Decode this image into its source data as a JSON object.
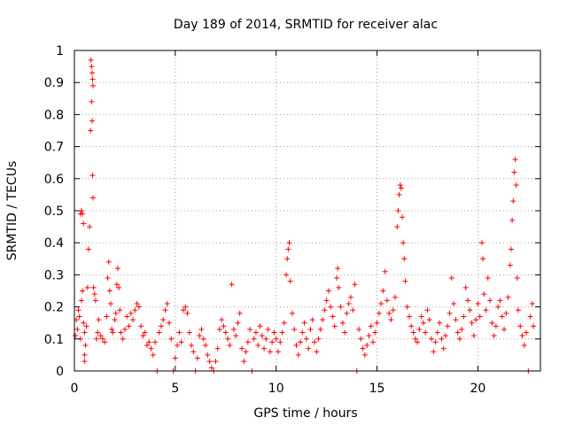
{
  "chart_data": {
    "type": "scatter",
    "title": "Day 189 of 2014, SRMTID for receiver alac",
    "xlabel": "GPS time / hours",
    "ylabel": "SRMTID / TECUs",
    "xlim": [
      0,
      23.1
    ],
    "ylim": [
      0,
      1
    ],
    "xticks": [
      0,
      5,
      10,
      15,
      20
    ],
    "xtick_labels": [
      "0",
      "5",
      "10",
      "15",
      "20"
    ],
    "yticks": [
      0,
      0.1,
      0.2,
      0.3,
      0.4,
      0.5,
      0.6,
      0.7,
      0.8,
      0.9,
      1
    ],
    "ytick_labels": [
      "0",
      "0.1",
      "0.2",
      "0.3",
      "0.4",
      "0.5",
      "0.6",
      "0.7",
      "0.8",
      "0.9",
      "1"
    ],
    "grid": true,
    "marker": "+",
    "color": "#ff0000",
    "series": [
      {
        "name": "SRMTID",
        "points": [
          [
            0.05,
            0.11
          ],
          [
            0.1,
            0.16
          ],
          [
            0.15,
            0.13
          ],
          [
            0.2,
            0.19
          ],
          [
            0.25,
            0.17
          ],
          [
            0.3,
            0.49
          ],
          [
            0.35,
            0.5
          ],
          [
            0.4,
            0.49
          ],
          [
            0.45,
            0.46
          ],
          [
            0.3,
            0.1
          ],
          [
            0.35,
            0.22
          ],
          [
            0.4,
            0.25
          ],
          [
            0.45,
            0.15
          ],
          [
            0.5,
            0.12
          ],
          [
            0.5,
            0.05
          ],
          [
            0.5,
            0.03
          ],
          [
            0.55,
            0.08
          ],
          [
            0.6,
            0.14
          ],
          [
            0.65,
            0.26
          ],
          [
            0.7,
            0.38
          ],
          [
            0.75,
            0.45
          ],
          [
            0.8,
            0.75
          ],
          [
            0.82,
            0.97
          ],
          [
            0.85,
            0.95
          ],
          [
            0.88,
            0.93
          ],
          [
            0.9,
            0.91
          ],
          [
            0.92,
            0.89
          ],
          [
            0.85,
            0.84
          ],
          [
            0.88,
            0.78
          ],
          [
            0.9,
            0.61
          ],
          [
            0.92,
            0.54
          ],
          [
            0.95,
            0.26
          ],
          [
            1.0,
            0.24
          ],
          [
            1.05,
            0.22
          ],
          [
            1.1,
            0.1
          ],
          [
            1.15,
            0.12
          ],
          [
            1.2,
            0.16
          ],
          [
            1.3,
            0.11
          ],
          [
            1.4,
            0.1
          ],
          [
            1.5,
            0.09
          ],
          [
            1.6,
            0.17
          ],
          [
            1.65,
            0.29
          ],
          [
            1.7,
            0.34
          ],
          [
            1.75,
            0.25
          ],
          [
            1.8,
            0.21
          ],
          [
            1.85,
            0.13
          ],
          [
            1.9,
            0.12
          ],
          [
            2.0,
            0.16
          ],
          [
            2.05,
            0.18
          ],
          [
            2.1,
            0.27
          ],
          [
            2.15,
            0.32
          ],
          [
            2.2,
            0.26
          ],
          [
            2.25,
            0.19
          ],
          [
            2.3,
            0.12
          ],
          [
            2.4,
            0.1
          ],
          [
            2.5,
            0.13
          ],
          [
            2.6,
            0.17
          ],
          [
            2.7,
            0.14
          ],
          [
            2.8,
            0.18
          ],
          [
            2.9,
            0.16
          ],
          [
            3.0,
            0.19
          ],
          [
            3.1,
            0.21
          ],
          [
            3.2,
            0.2
          ],
          [
            3.3,
            0.14
          ],
          [
            3.4,
            0.11
          ],
          [
            3.5,
            0.12
          ],
          [
            3.6,
            0.08
          ],
          [
            3.7,
            0.09
          ],
          [
            3.8,
            0.07
          ],
          [
            3.9,
            0.05
          ],
          [
            4.0,
            0.09
          ],
          [
            4.1,
            0.0
          ],
          [
            4.2,
            0.12
          ],
          [
            4.3,
            0.14
          ],
          [
            4.4,
            0.16
          ],
          [
            4.5,
            0.19
          ],
          [
            4.6,
            0.21
          ],
          [
            4.7,
            0.15
          ],
          [
            4.8,
            0.1
          ],
          [
            4.9,
            0.0
          ],
          [
            5.0,
            0.04
          ],
          [
            5.1,
            0.08
          ],
          [
            5.2,
            0.12
          ],
          [
            5.3,
            0.09
          ],
          [
            5.4,
            0.19
          ],
          [
            5.5,
            0.2
          ],
          [
            5.6,
            0.18
          ],
          [
            5.7,
            0.12
          ],
          [
            5.8,
            0.08
          ],
          [
            5.9,
            0.06
          ],
          [
            6.0,
            0.0
          ],
          [
            6.1,
            0.04
          ],
          [
            6.2,
            0.11
          ],
          [
            6.3,
            0.13
          ],
          [
            6.4,
            0.1
          ],
          [
            6.5,
            0.08
          ],
          [
            6.6,
            0.05
          ],
          [
            6.7,
            0.03
          ],
          [
            6.8,
            0.01
          ],
          [
            6.9,
            0.0
          ],
          [
            7.0,
            0.03
          ],
          [
            7.1,
            0.07
          ],
          [
            7.2,
            0.13
          ],
          [
            7.3,
            0.16
          ],
          [
            7.4,
            0.14
          ],
          [
            7.5,
            0.12
          ],
          [
            7.6,
            0.1
          ],
          [
            7.7,
            0.08
          ],
          [
            7.8,
            0.27
          ],
          [
            7.9,
            0.13
          ],
          [
            8.0,
            0.11
          ],
          [
            8.1,
            0.15
          ],
          [
            8.2,
            0.18
          ],
          [
            8.3,
            0.07
          ],
          [
            8.4,
            0.03
          ],
          [
            8.5,
            0.06
          ],
          [
            8.6,
            0.09
          ],
          [
            8.7,
            0.13
          ],
          [
            8.8,
            0.0
          ],
          [
            8.9,
            0.1
          ],
          [
            9.0,
            0.12
          ],
          [
            9.1,
            0.08
          ],
          [
            9.2,
            0.14
          ],
          [
            9.3,
            0.11
          ],
          [
            9.4,
            0.07
          ],
          [
            9.5,
            0.1
          ],
          [
            9.6,
            0.13
          ],
          [
            9.7,
            0.06
          ],
          [
            9.8,
            0.09
          ],
          [
            9.9,
            0.12
          ],
          [
            10.0,
            0.1
          ],
          [
            10.1,
            0.06
          ],
          [
            10.2,
            0.09
          ],
          [
            10.3,
            0.12
          ],
          [
            10.4,
            0.15
          ],
          [
            10.5,
            0.3
          ],
          [
            10.55,
            0.35
          ],
          [
            10.6,
            0.38
          ],
          [
            10.65,
            0.4
          ],
          [
            10.7,
            0.28
          ],
          [
            10.8,
            0.18
          ],
          [
            10.9,
            0.13
          ],
          [
            11.0,
            0.08
          ],
          [
            11.1,
            0.05
          ],
          [
            11.2,
            0.09
          ],
          [
            11.3,
            0.12
          ],
          [
            11.4,
            0.15
          ],
          [
            11.5,
            0.1
          ],
          [
            11.6,
            0.07
          ],
          [
            11.7,
            0.13
          ],
          [
            11.8,
            0.16
          ],
          [
            11.9,
            0.09
          ],
          [
            12.0,
            0.06
          ],
          [
            12.1,
            0.1
          ],
          [
            12.2,
            0.13
          ],
          [
            12.3,
            0.16
          ],
          [
            12.4,
            0.19
          ],
          [
            12.5,
            0.22
          ],
          [
            12.6,
            0.25
          ],
          [
            12.7,
            0.2
          ],
          [
            12.8,
            0.17
          ],
          [
            12.9,
            0.14
          ],
          [
            13.0,
            0.29
          ],
          [
            13.05,
            0.32
          ],
          [
            13.1,
            0.26
          ],
          [
            13.2,
            0.2
          ],
          [
            13.3,
            0.15
          ],
          [
            13.4,
            0.12
          ],
          [
            13.5,
            0.18
          ],
          [
            13.6,
            0.21
          ],
          [
            13.7,
            0.23
          ],
          [
            13.8,
            0.19
          ],
          [
            13.9,
            0.27
          ],
          [
            14.0,
            0.0
          ],
          [
            14.1,
            0.13
          ],
          [
            14.2,
            0.1
          ],
          [
            14.3,
            0.07
          ],
          [
            14.4,
            0.05
          ],
          [
            14.5,
            0.08
          ],
          [
            14.6,
            0.11
          ],
          [
            14.7,
            0.14
          ],
          [
            14.8,
            0.09
          ],
          [
            14.9,
            0.12
          ],
          [
            15.0,
            0.15
          ],
          [
            15.1,
            0.18
          ],
          [
            15.2,
            0.21
          ],
          [
            15.3,
            0.25
          ],
          [
            15.4,
            0.31
          ],
          [
            15.5,
            0.22
          ],
          [
            15.6,
            0.18
          ],
          [
            15.7,
            0.16
          ],
          [
            15.8,
            0.19
          ],
          [
            15.9,
            0.23
          ],
          [
            16.0,
            0.45
          ],
          [
            16.05,
            0.5
          ],
          [
            16.1,
            0.55
          ],
          [
            16.15,
            0.58
          ],
          [
            16.2,
            0.57
          ],
          [
            16.25,
            0.48
          ],
          [
            16.3,
            0.4
          ],
          [
            16.35,
            0.35
          ],
          [
            16.4,
            0.28
          ],
          [
            16.5,
            0.2
          ],
          [
            16.6,
            0.17
          ],
          [
            16.7,
            0.14
          ],
          [
            16.8,
            0.12
          ],
          [
            16.9,
            0.1
          ],
          [
            17.0,
            0.09
          ],
          [
            17.1,
            0.13
          ],
          [
            17.2,
            0.17
          ],
          [
            17.3,
            0.15
          ],
          [
            17.4,
            0.12
          ],
          [
            17.5,
            0.19
          ],
          [
            17.6,
            0.16
          ],
          [
            17.7,
            0.1
          ],
          [
            17.8,
            0.06
          ],
          [
            17.9,
            0.09
          ],
          [
            18.0,
            0.12
          ],
          [
            18.1,
            0.15
          ],
          [
            18.2,
            0.1
          ],
          [
            18.3,
            0.07
          ],
          [
            18.4,
            0.11
          ],
          [
            18.5,
            0.14
          ],
          [
            18.6,
            0.18
          ],
          [
            18.7,
            0.29
          ],
          [
            18.8,
            0.21
          ],
          [
            18.9,
            0.16
          ],
          [
            19.0,
            0.12
          ],
          [
            19.1,
            0.1
          ],
          [
            19.2,
            0.13
          ],
          [
            19.3,
            0.17
          ],
          [
            19.4,
            0.26
          ],
          [
            19.5,
            0.22
          ],
          [
            19.6,
            0.19
          ],
          [
            19.7,
            0.15
          ],
          [
            19.8,
            0.11
          ],
          [
            19.9,
            0.16
          ],
          [
            20.0,
            0.21
          ],
          [
            20.1,
            0.17
          ],
          [
            20.2,
            0.4
          ],
          [
            20.25,
            0.35
          ],
          [
            20.3,
            0.24
          ],
          [
            20.4,
            0.19
          ],
          [
            20.5,
            0.29
          ],
          [
            20.6,
            0.22
          ],
          [
            20.7,
            0.15
          ],
          [
            20.8,
            0.11
          ],
          [
            20.9,
            0.14
          ],
          [
            21.0,
            0.2
          ],
          [
            21.1,
            0.22
          ],
          [
            21.2,
            0.17
          ],
          [
            21.3,
            0.13
          ],
          [
            21.4,
            0.18
          ],
          [
            21.5,
            0.23
          ],
          [
            21.6,
            0.33
          ],
          [
            21.65,
            0.38
          ],
          [
            21.7,
            0.47
          ],
          [
            21.75,
            0.53
          ],
          [
            21.8,
            0.62
          ],
          [
            21.85,
            0.66
          ],
          [
            21.9,
            0.58
          ],
          [
            21.95,
            0.29
          ],
          [
            22.0,
            0.19
          ],
          [
            22.1,
            0.14
          ],
          [
            22.2,
            0.11
          ],
          [
            22.3,
            0.08
          ],
          [
            22.4,
            0.12
          ],
          [
            22.5,
            0.0
          ],
          [
            22.6,
            0.17
          ],
          [
            22.7,
            0.21
          ],
          [
            22.75,
            0.14
          ]
        ]
      }
    ]
  }
}
